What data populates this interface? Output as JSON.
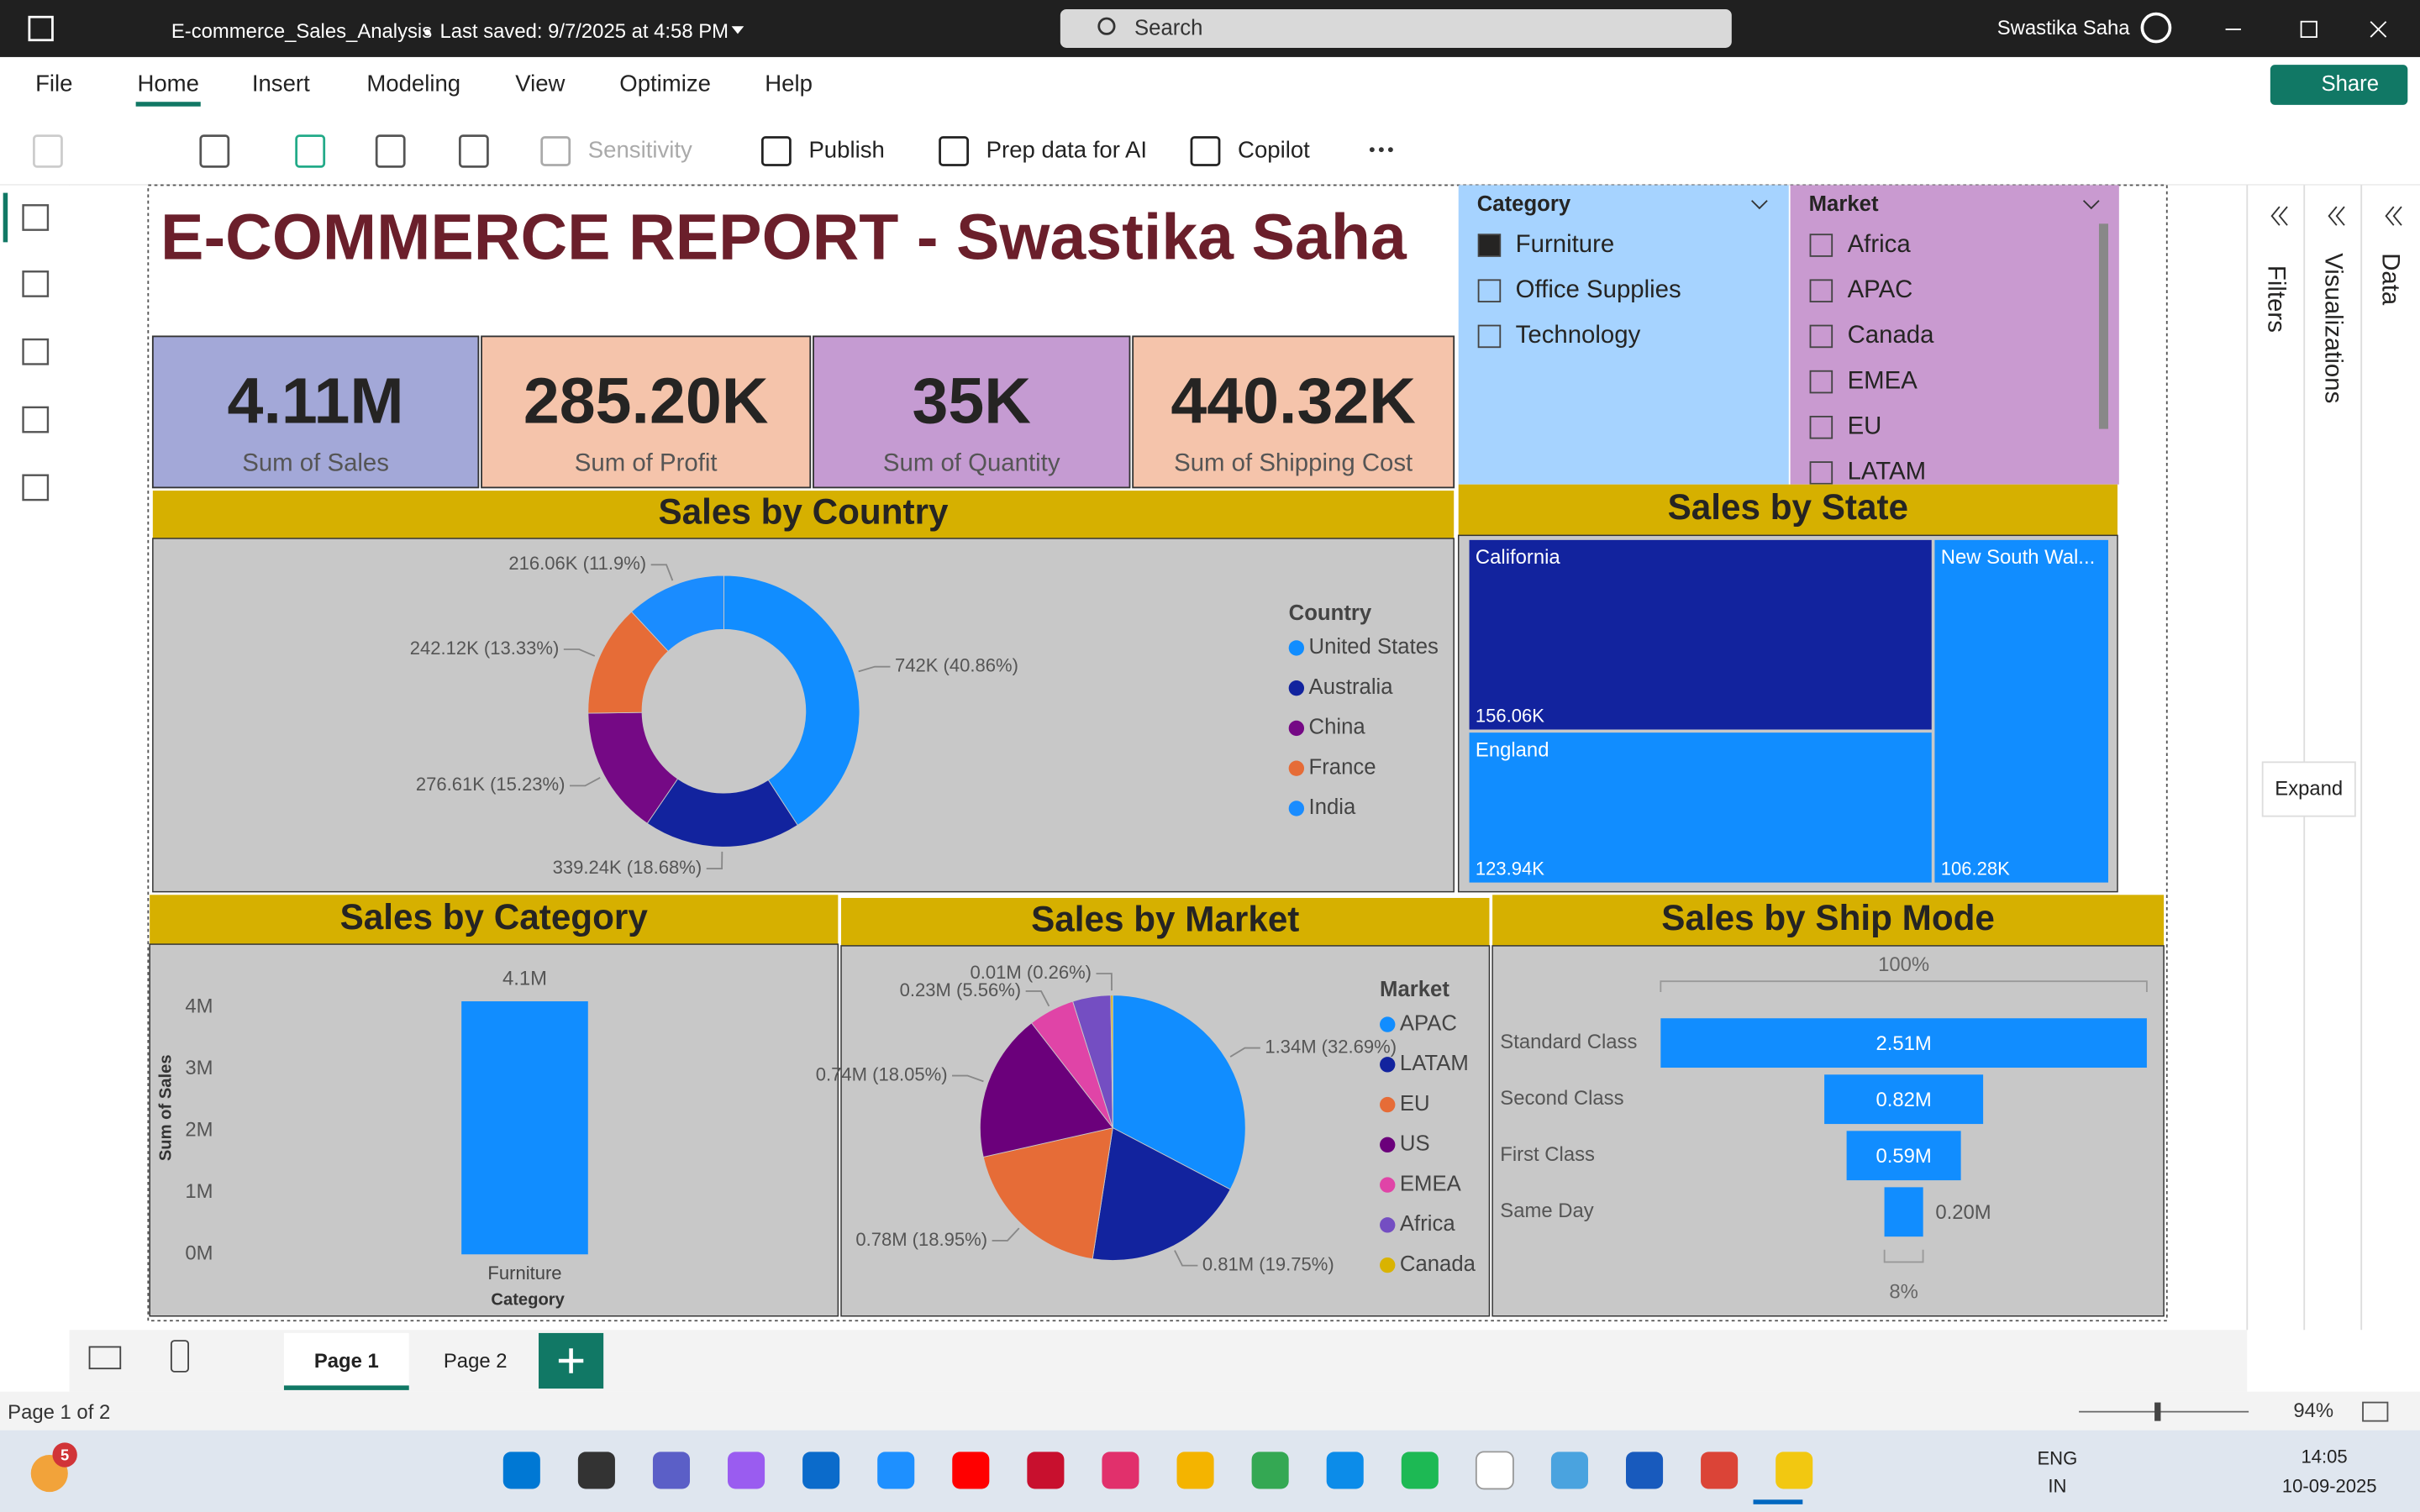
{
  "titlebar": {
    "file": "E-commerce_Sales_Analysis",
    "saved": "Last saved: 9/7/2025 at 4:58 PM",
    "search": "Search",
    "user": "Swastika Saha"
  },
  "menu": {
    "items": [
      "File",
      "Home",
      "Insert",
      "Modeling",
      "View",
      "Optimize",
      "Help"
    ],
    "active": 1,
    "share": "Share"
  },
  "ribbon": {
    "items": [
      "Sensitivity",
      "Publish",
      "Prep data for AI",
      "Copilot"
    ]
  },
  "report": {
    "title": "E-COMMERCE REPORT - Swastika Saha",
    "cards": [
      {
        "value": "4.11M",
        "label": "Sum of Sales",
        "color": "#a3a8d8"
      },
      {
        "value": "285.20K",
        "label": "Sum of Profit",
        "color": "#f5c4ab"
      },
      {
        "value": "35K",
        "label": "Sum of Quantity",
        "color": "#c59bd2"
      },
      {
        "value": "440.32K",
        "label": "Sum of Shipping Cost",
        "color": "#f5c4ab"
      }
    ],
    "slicers": [
      {
        "title": "Category",
        "items": [
          "Furniture",
          "Office Supplies",
          "Technology"
        ],
        "checked": [
          true,
          false,
          false
        ],
        "color": "#a6d3ff"
      },
      {
        "title": "Market",
        "items": [
          "Africa",
          "APAC",
          "Canada",
          "EMEA",
          "EU",
          "LATAM"
        ],
        "checked": [
          false,
          false,
          false,
          false,
          false,
          false
        ],
        "color": "#c99ad0"
      }
    ],
    "sales_by_country": {
      "type": "donut",
      "title": "Sales by Country",
      "legend_title": "Country",
      "categories": [
        "United States",
        "Australia",
        "China",
        "France",
        "India"
      ],
      "values": [
        742,
        339.24,
        276.61,
        242.12,
        216.06
      ],
      "value_labels": [
        "742K (40.86%)",
        "339.24K (18.68%)",
        "276.61K (15.23%)",
        "242.12K (13.33%)",
        "216.06K (11.9%)"
      ],
      "colors": [
        "#118dff",
        "#12239e",
        "#750985",
        "#e66c37",
        "#1a8cff"
      ]
    },
    "sales_by_state": {
      "type": "treemap",
      "title": "Sales by State",
      "categories": [
        "California",
        "England",
        "New South Wal..."
      ],
      "values": [
        156.06,
        123.94,
        106.28
      ],
      "value_labels": [
        "156.06K",
        "123.94K",
        "106.28K"
      ],
      "colors": [
        "#12239e",
        "#118dff",
        "#118dff"
      ]
    },
    "sales_by_category": {
      "type": "bar",
      "title": "Sales by Category",
      "x_label": "Category",
      "y_label": "Sum of Sales",
      "categories": [
        "Furniture"
      ],
      "values": [
        4.1
      ],
      "value_labels": [
        "4.1M"
      ],
      "color": "#118dff",
      "ylim": [
        0,
        4.5
      ],
      "yticks": [
        {
          "value": 0,
          "label": "0M"
        },
        {
          "value": 1,
          "label": "1M"
        },
        {
          "value": 2,
          "label": "2M"
        },
        {
          "value": 3,
          "label": "3M"
        },
        {
          "value": 4,
          "label": "4M"
        }
      ]
    },
    "sales_by_market": {
      "type": "pie",
      "title": "Sales by Market",
      "legend_title": "Market",
      "categories": [
        "APAC",
        "LATAM",
        "EU",
        "US",
        "EMEA",
        "Africa",
        "Canada"
      ],
      "values": [
        1.34,
        0.81,
        0.78,
        0.74,
        0.23,
        0.19,
        0.01
      ],
      "value_labels": [
        "1.34M (32.69%)",
        "0.81M (19.75%)",
        "0.78M (18.95%)",
        "0.74M (18.05%)",
        "0.23M (5.56%)",
        null,
        "0.01M (0.26%)"
      ],
      "colors": [
        "#118dff",
        "#12239e",
        "#e66c37",
        "#6b007b",
        "#e044a7",
        "#744ec2",
        "#d9b300"
      ]
    },
    "sales_by_ship_mode": {
      "type": "funnel",
      "title": "Sales by Ship Mode",
      "categories": [
        "Standard Class",
        "Second Class",
        "First Class",
        "Same Day"
      ],
      "values": [
        2.51,
        0.82,
        0.59,
        0.2
      ],
      "value_labels": [
        "2.51M",
        "0.82M",
        "0.59M",
        "0.20M"
      ],
      "top_label": "100%",
      "bottom_label": "8%",
      "color": "#118dff"
    }
  },
  "panes": [
    "Filters",
    "Visualizations",
    "Data"
  ],
  "tooltip": "Expand",
  "pages": {
    "tabs": [
      "Page 1",
      "Page 2"
    ],
    "active": 0,
    "status": "Page 1 of 2",
    "zoom": "94%"
  },
  "taskbar": {
    "badge": "5",
    "lang": "ENG",
    "region": "IN",
    "time": "14:05",
    "date": "10-09-2025"
  }
}
